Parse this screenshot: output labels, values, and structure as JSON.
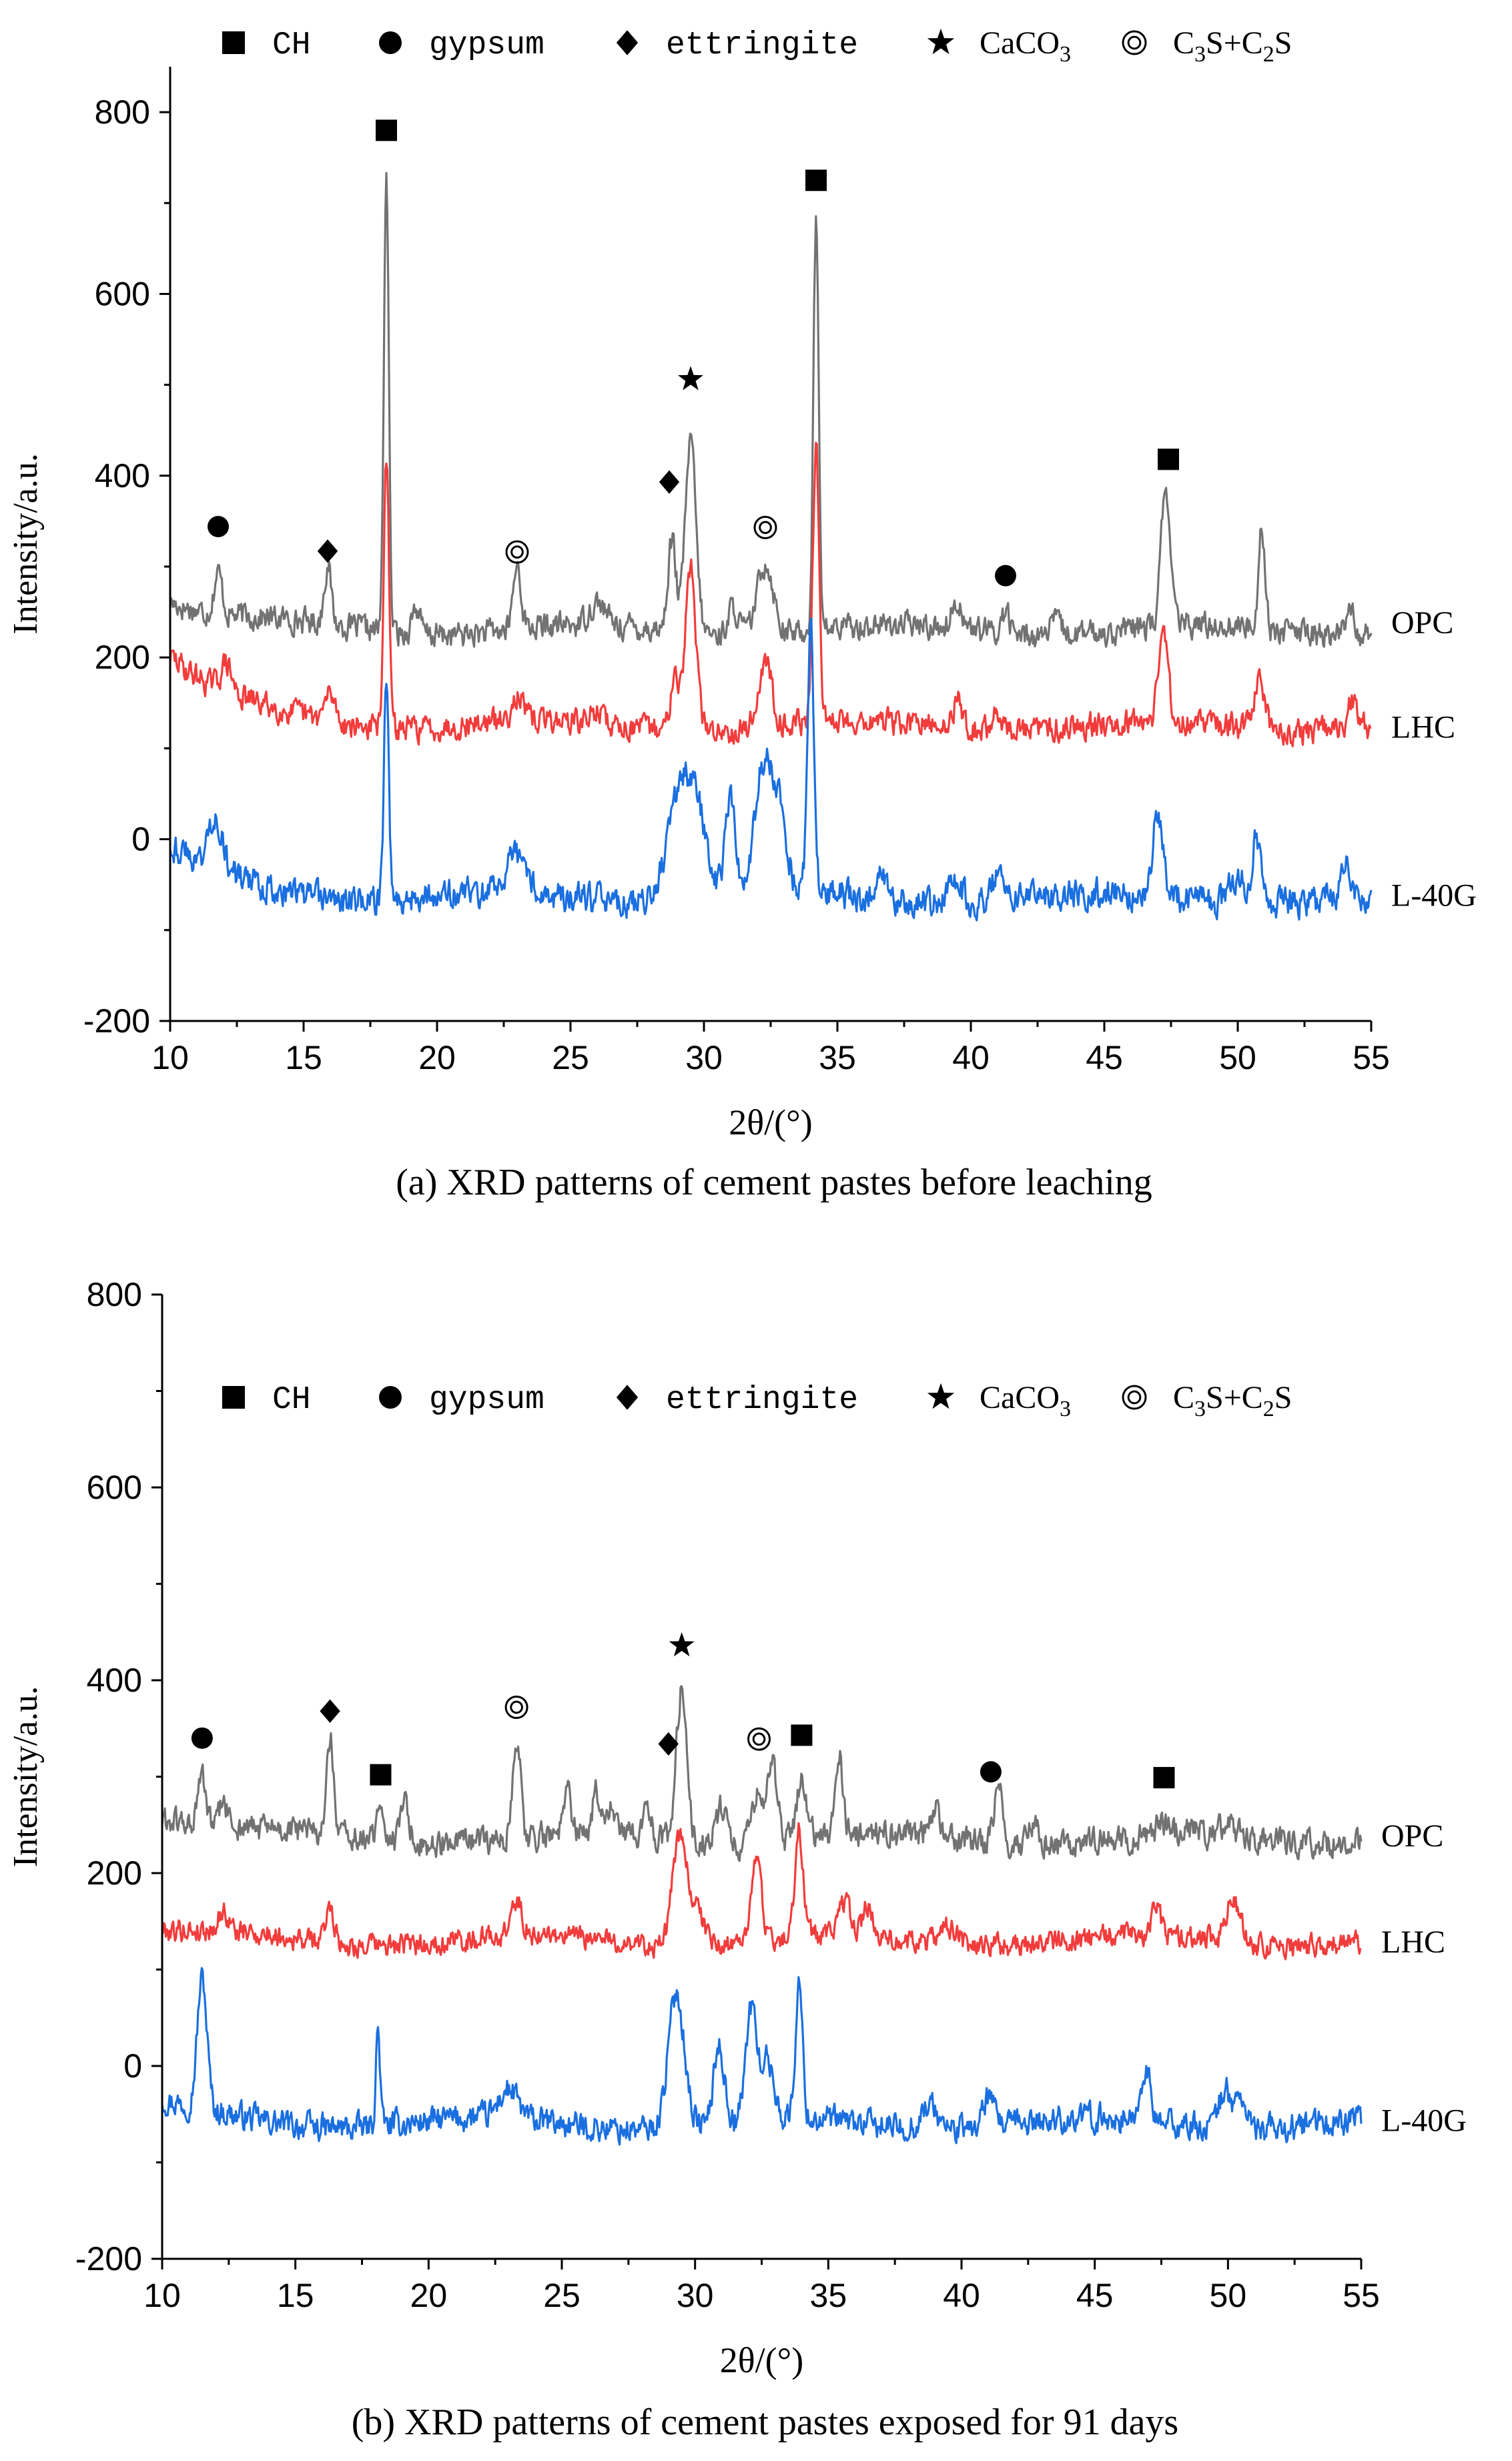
{
  "figure": {
    "background": "#ffffff"
  },
  "series_colors": {
    "OPC": "#727272",
    "LHC": "#f23c3c",
    "L-40G": "#1a6fe0"
  },
  "marker_legend": [
    {
      "symbol": "square",
      "label": "CH"
    },
    {
      "symbol": "circle",
      "label": "gypsum"
    },
    {
      "symbol": "diamond",
      "label": "ettringite"
    },
    {
      "symbol": "star",
      "label": "CaCO",
      "sub": "3"
    },
    {
      "symbol": "double-circle",
      "label": "C",
      "sub": "3",
      "label2": "S+C",
      "sub2": "2",
      "label3": "S"
    }
  ],
  "chart_data": [
    {
      "type": "line",
      "panel": "a",
      "caption": "(a) XRD patterns of cement pastes before leaching",
      "xlabel": "2θ/(°)",
      "ylabel": "Intensity/a.u.",
      "xlim": [
        10,
        55
      ],
      "ylim": [
        -200,
        850
      ],
      "xticks": [
        10,
        15,
        20,
        25,
        30,
        35,
        40,
        45,
        50,
        55
      ],
      "yticks": [
        -200,
        0,
        200,
        400,
        600,
        800
      ],
      "series": [
        {
          "name": "OPC",
          "baseline": 230,
          "start_level": 265,
          "noise": 12,
          "label_y": 240,
          "peaks": [
            [
              11.8,
              45,
              0.15
            ],
            [
              15.9,
              65,
              0.13
            ],
            [
              18.1,
              505,
              0.09
            ],
            [
              19.2,
              30,
              0.15
            ],
            [
              23.0,
              70,
              0.15
            ],
            [
              26.0,
              25,
              0.3
            ],
            [
              28.8,
              100,
              0.15
            ],
            [
              29.5,
              210,
              0.2
            ],
            [
              31.1,
              30,
              0.2
            ],
            [
              32.3,
              80,
              0.3
            ],
            [
              34.2,
              450,
              0.1
            ],
            [
              39.5,
              30,
              0.2
            ],
            [
              41.3,
              25,
              0.15
            ],
            [
              43.2,
              15,
              0.2
            ],
            [
              47.3,
              155,
              0.17
            ],
            [
              50.9,
              115,
              0.12
            ],
            [
              54.2,
              35,
              0.15
            ]
          ]
        },
        {
          "name": "LHC",
          "baseline": 125,
          "start_level": 200,
          "noise": 12,
          "label_y": 125,
          "peaks": [
            [
              12.1,
              30,
              0.2
            ],
            [
              16.0,
              30,
              0.2
            ],
            [
              18.1,
              290,
              0.1
            ],
            [
              23.0,
              30,
              0.2
            ],
            [
              26.0,
              15,
              0.2
            ],
            [
              28.9,
              70,
              0.15
            ],
            [
              29.5,
              180,
              0.2
            ],
            [
              32.3,
              70,
              0.25
            ],
            [
              34.2,
              300,
              0.12
            ],
            [
              39.5,
              30,
              0.2
            ],
            [
              41.0,
              20,
              0.2
            ],
            [
              47.2,
              105,
              0.17
            ],
            [
              50.8,
              55,
              0.2
            ],
            [
              54.3,
              30,
              0.15
            ]
          ]
        },
        {
          "name": "L-40G",
          "baseline": -65,
          "start_level": -10,
          "noise": 14,
          "label_y": -60,
          "peaks": [
            [
              11.7,
              60,
              0.25
            ],
            [
              18.1,
              245,
              0.09
            ],
            [
              23.0,
              40,
              0.4
            ],
            [
              28.9,
              80,
              0.4
            ],
            [
              29.6,
              115,
              0.45
            ],
            [
              31.0,
              110,
              0.2
            ],
            [
              32.2,
              135,
              0.3
            ],
            [
              32.8,
              90,
              0.3
            ],
            [
              34.0,
              290,
              0.12
            ],
            [
              36.6,
              25,
              0.25
            ],
            [
              39.4,
              30,
              0.25
            ],
            [
              41.0,
              30,
              0.2
            ],
            [
              47.0,
              90,
              0.18
            ],
            [
              50.0,
              30,
              0.3
            ],
            [
              50.7,
              70,
              0.15
            ],
            [
              54.0,
              45,
              0.15
            ]
          ]
        }
      ],
      "annotations": [
        {
          "symbol": "circle",
          "x": 11.8,
          "y": 344
        },
        {
          "symbol": "diamond",
          "x": 15.9,
          "y": 317
        },
        {
          "symbol": "square",
          "x": 18.1,
          "y": 780
        },
        {
          "symbol": "double-circle",
          "x": 23.0,
          "y": 316
        },
        {
          "symbol": "diamond",
          "x": 28.7,
          "y": 393
        },
        {
          "symbol": "star",
          "x": 29.5,
          "y": 506
        },
        {
          "symbol": "double-circle",
          "x": 32.3,
          "y": 343
        },
        {
          "symbol": "square",
          "x": 34.2,
          "y": 725
        },
        {
          "symbol": "circle",
          "x": 41.3,
          "y": 290
        },
        {
          "symbol": "square",
          "x": 47.4,
          "y": 418
        }
      ]
    },
    {
      "type": "line",
      "panel": "b",
      "caption": "(b) XRD patterns of cement pastes exposed for 91 days",
      "xlabel": "2θ/(°)",
      "ylabel": "Intensity/a.u.",
      "xlim": [
        10,
        55
      ],
      "ylim": [
        -200,
        800
      ],
      "xticks": [
        10,
        15,
        20,
        25,
        30,
        35,
        40,
        45,
        50,
        55
      ],
      "yticks": [
        -200,
        0,
        200,
        400,
        600,
        800
      ],
      "series": [
        {
          "name": "OPC",
          "baseline": 235,
          "start_level": 260,
          "noise": 12,
          "label_y": 240,
          "peaks": [
            [
              11.5,
              50,
              0.15
            ],
            [
              12.3,
              25,
              0.15
            ],
            [
              16.3,
              100,
              0.13
            ],
            [
              18.2,
              50,
              0.1
            ],
            [
              19.1,
              50,
              0.15
            ],
            [
              23.3,
              105,
              0.15
            ],
            [
              25.2,
              40,
              0.15
            ],
            [
              26.3,
              45,
              0.15
            ],
            [
              26.9,
              30,
              0.15
            ],
            [
              28.2,
              40,
              0.15
            ],
            [
              29.5,
              160,
              0.2
            ],
            [
              31.0,
              40,
              0.2
            ],
            [
              32.3,
              50,
              0.2
            ],
            [
              32.9,
              80,
              0.2
            ],
            [
              34.0,
              60,
              0.2
            ],
            [
              35.4,
              85,
              0.15
            ],
            [
              39.0,
              30,
              0.2
            ],
            [
              41.4,
              65,
              0.15
            ],
            [
              42.7,
              25,
              0.2
            ],
            [
              47.5,
              15,
              0.2
            ],
            [
              50.0,
              10,
              0.3
            ]
          ]
        },
        {
          "name": "LHC",
          "baseline": 130,
          "start_level": 140,
          "noise": 10,
          "label_y": 130,
          "peaks": [
            [
              12.3,
              20,
              0.2
            ],
            [
              16.3,
              40,
              0.15
            ],
            [
              23.3,
              35,
              0.2
            ],
            [
              29.4,
              110,
              0.25
            ],
            [
              30.0,
              40,
              0.3
            ],
            [
              32.3,
              80,
              0.2
            ],
            [
              33.9,
              110,
              0.15
            ],
            [
              35.6,
              35,
              0.2
            ],
            [
              36.5,
              30,
              0.2
            ],
            [
              39.5,
              20,
              0.3
            ],
            [
              47.3,
              25,
              0.2
            ],
            [
              50.2,
              45,
              0.25
            ]
          ]
        },
        {
          "name": "L-40G",
          "baseline": -60,
          "start_level": -40,
          "noise": 12,
          "label_y": -55,
          "peaks": [
            [
              11.5,
              135,
              0.18
            ],
            [
              18.1,
              100,
              0.08
            ],
            [
              23.0,
              30,
              0.35
            ],
            [
              29.3,
              140,
              0.3
            ],
            [
              30.9,
              80,
              0.2
            ],
            [
              32.1,
              115,
              0.2
            ],
            [
              32.7,
              60,
              0.25
            ],
            [
              33.9,
              140,
              0.13
            ],
            [
              38.8,
              25,
              0.3
            ],
            [
              41.0,
              30,
              0.2
            ],
            [
              46.9,
              55,
              0.17
            ],
            [
              49.9,
              40,
              0.25
            ],
            [
              50.5,
              30,
              0.2
            ]
          ]
        }
      ],
      "annotations": [
        {
          "symbol": "circle",
          "x": 11.5,
          "y": 340
        },
        {
          "symbol": "diamond",
          "x": 16.3,
          "y": 368
        },
        {
          "symbol": "square",
          "x": 18.2,
          "y": 302
        },
        {
          "symbol": "double-circle",
          "x": 23.3,
          "y": 372
        },
        {
          "symbol": "diamond",
          "x": 29.0,
          "y": 334
        },
        {
          "symbol": "star",
          "x": 29.5,
          "y": 436
        },
        {
          "symbol": "double-circle",
          "x": 32.4,
          "y": 339
        },
        {
          "symbol": "square",
          "x": 34.0,
          "y": 343
        },
        {
          "symbol": "circle",
          "x": 41.1,
          "y": 305
        },
        {
          "symbol": "square",
          "x": 47.6,
          "y": 299
        }
      ]
    }
  ]
}
